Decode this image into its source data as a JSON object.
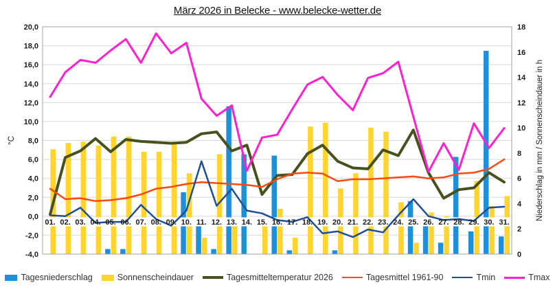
{
  "chart_data": {
    "type": "combo",
    "title": "März 2026 in Belecke - www.belecke-wetter.de",
    "categories": [
      "01.",
      "02.",
      "03.",
      "04.",
      "05.",
      "06.",
      "07.",
      "08.",
      "09.",
      "10.",
      "11.",
      "12.",
      "13.",
      "14.",
      "15.",
      "16.",
      "17.",
      "18.",
      "19.",
      "20.",
      "21.",
      "22.",
      "23.",
      "24.",
      "25.",
      "26.",
      "27.",
      "28.",
      "29.",
      "30.",
      "31."
    ],
    "series": [
      {
        "key": "precip",
        "name": "Tagesniederschlag",
        "type": "bar",
        "axis": "right",
        "color": "#1E8FD8",
        "values": [
          0,
          0,
          0,
          0,
          0.4,
          0.4,
          0,
          0,
          0,
          4.9,
          2.8,
          0.4,
          11.7,
          7.9,
          0,
          7.8,
          0.3,
          0,
          0,
          0.3,
          0,
          0,
          0,
          0,
          4.2,
          2.8,
          0.9,
          7.7,
          1.8,
          16.1,
          1.4
        ]
      },
      {
        "key": "sunshine",
        "name": "Sonnenscheindauer",
        "type": "bar",
        "axis": "right",
        "color": "#FFD42E",
        "values": [
          8.3,
          8.8,
          8.9,
          8.6,
          9.3,
          9.3,
          8.1,
          8.1,
          8.9,
          6.4,
          1.3,
          7.9,
          2.8,
          0,
          2.5,
          3.6,
          1.3,
          10.1,
          10.4,
          5.2,
          6.4,
          10.0,
          9.7,
          4.1,
          0.9,
          3.3,
          3.0,
          0,
          5.8,
          3.8,
          4.6
        ]
      },
      {
        "key": "t2026",
        "name": "Tagesmitteltemperatur 2026",
        "type": "line",
        "axis": "left",
        "color": "#47511D",
        "width": 4,
        "values": [
          0.2,
          6.2,
          6.9,
          8.2,
          6.8,
          8.1,
          7.9,
          7.8,
          7.7,
          7.8,
          8.7,
          8.9,
          6.9,
          7.5,
          2.3,
          4.3,
          4.4,
          6.6,
          7.5,
          5.8,
          5.1,
          5.0,
          7.0,
          6.4,
          9.1,
          4.6,
          1.9,
          2.8,
          3.0,
          4.6,
          3.6
        ]
      },
      {
        "key": "t6190",
        "name": "Tagesmittel 1961-90",
        "type": "line",
        "axis": "left",
        "color": "#FF4911",
        "width": 2.5,
        "values": [
          2.9,
          1.8,
          1.9,
          1.6,
          1.7,
          1.9,
          2.3,
          2.9,
          3.1,
          3.4,
          3.6,
          3.5,
          3.4,
          3.3,
          3.1,
          3.9,
          4.5,
          4.6,
          4.5,
          3.7,
          3.9,
          3.9,
          4.0,
          4.1,
          4.2,
          4.0,
          4.1,
          4.5,
          4.6,
          5.0,
          6.0
        ]
      },
      {
        "key": "tmin",
        "name": "Tmin",
        "type": "line",
        "axis": "left",
        "color": "#1F4E96",
        "width": 2.5,
        "values": [
          0.1,
          0.0,
          0.9,
          -0.7,
          -0.6,
          -0.6,
          1.2,
          -0.3,
          -1.0,
          0.6,
          5.8,
          1.1,
          2.9,
          0.6,
          0.3,
          -0.4,
          -0.6,
          -0.1,
          -1.8,
          -1.6,
          -2.2,
          -1.4,
          -1.7,
          0.1,
          1.8,
          0.0,
          -0.4,
          -0.3,
          -0.5,
          0.9,
          1.0
        ]
      },
      {
        "key": "tmax",
        "name": "Tmax",
        "type": "line",
        "axis": "left",
        "color": "#FF1FD0",
        "width": 3,
        "values": [
          12.6,
          15.2,
          16.5,
          16.2,
          17.5,
          18.7,
          16.2,
          19.3,
          17.2,
          18.3,
          12.4,
          10.6,
          11.7,
          4.8,
          8.3,
          8.6,
          11.3,
          13.9,
          14.7,
          12.8,
          11.2,
          14.6,
          15.1,
          16.3,
          10.5,
          4.7,
          7.7,
          4.9,
          9.8,
          7.2,
          9.3
        ]
      }
    ],
    "left_axis": {
      "label": "°C",
      "min": -4,
      "max": 20,
      "tick_step": 2,
      "tick_labels": [
        "20,0",
        "18,0",
        "16,0",
        "14,0",
        "12,0",
        "10,0",
        "8,0",
        "6,0",
        "4,0",
        "2,0",
        "0,0",
        "-2,0",
        "-4,0"
      ]
    },
    "right_axis": {
      "label": "Niederschlag in mm / Sonnenscheindauer in h",
      "min": 0,
      "max": 18,
      "tick_step": 2,
      "tick_labels": [
        "18",
        "16",
        "14",
        "12",
        "10",
        "8",
        "6",
        "4",
        "2",
        "0"
      ]
    },
    "grid": "horizontal",
    "legend_position": "bottom",
    "colors": {
      "grid": "#D8D8D8",
      "border": "#A0A0A0",
      "tick_text": "#1a1a1a",
      "label_bg": "#ffffff"
    }
  }
}
